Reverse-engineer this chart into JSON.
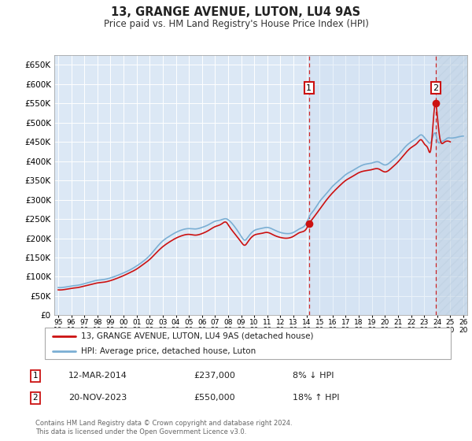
{
  "title": "13, GRANGE AVENUE, LUTON, LU4 9AS",
  "subtitle": "Price paid vs. HM Land Registry's House Price Index (HPI)",
  "background_color": "#ffffff",
  "plot_bg_color": "#dce8f5",
  "grid_color": "#ffffff",
  "hpi_line_color": "#7bafd4",
  "price_line_color": "#cc1111",
  "legend_label1": "13, GRANGE AVENUE, LUTON, LU4 9AS (detached house)",
  "legend_label2": "HPI: Average price, detached house, Luton",
  "annotation1_date": "12-MAR-2014",
  "annotation1_price": "£237,000",
  "annotation1_hpi": "8% ↓ HPI",
  "annotation2_date": "20-NOV-2023",
  "annotation2_price": "£550,000",
  "annotation2_hpi": "18% ↑ HPI",
  "footer": "Contains HM Land Registry data © Crown copyright and database right 2024.\nThis data is licensed under the Open Government Licence v3.0.",
  "ylim": [
    0,
    675000
  ],
  "yticks": [
    0,
    50000,
    100000,
    150000,
    200000,
    250000,
    300000,
    350000,
    400000,
    450000,
    500000,
    550000,
    600000,
    650000
  ],
  "purchase1_x": 2014.19,
  "purchase1_y": 237000,
  "purchase2_x": 2023.89,
  "purchase2_y": 550000,
  "xlim_left": 1994.7,
  "xlim_right": 2026.3
}
